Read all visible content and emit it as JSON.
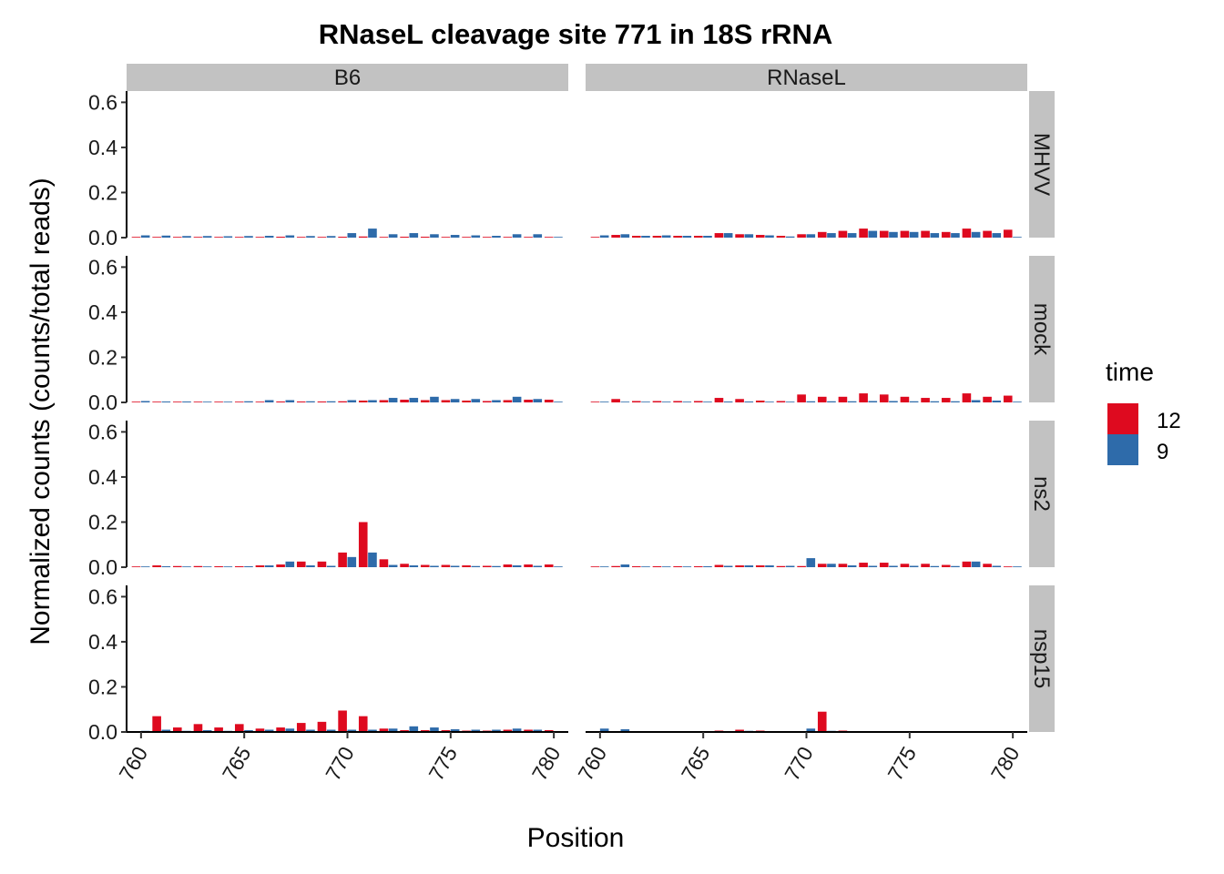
{
  "chart_data": {
    "type": "bar",
    "title": "RNaseL cleavage site 771 in 18S rRNA",
    "xlabel": "Position",
    "ylabel": "Normalized counts (counts/total reads)",
    "ylim": [
      0,
      0.65
    ],
    "xlim": [
      759.3,
      780.7
    ],
    "y_ticks": [
      0.0,
      0.2,
      0.4,
      0.6
    ],
    "y_tick_labels": [
      "0.0",
      "0.2",
      "0.4",
      "0.6"
    ],
    "x_ticks": [
      760,
      765,
      770,
      775,
      780
    ],
    "x_tick_labels": [
      "760",
      "765",
      "770",
      "775",
      "780"
    ],
    "positions": [
      760,
      761,
      762,
      763,
      764,
      765,
      766,
      767,
      768,
      769,
      770,
      771,
      772,
      773,
      774,
      775,
      776,
      777,
      778,
      779,
      780
    ],
    "col_facets": [
      "B6",
      "RNaseL"
    ],
    "row_facets": [
      "MHVV",
      "mock",
      "ns2",
      "nsp15"
    ],
    "legend": {
      "title": "time",
      "position": "right",
      "entries": [
        {
          "label": "12",
          "color": "#DE0A1F"
        },
        {
          "label": "9",
          "color": "#2E6BAA"
        }
      ]
    },
    "panels": [
      {
        "col": "B6",
        "row": "MHVV",
        "series": [
          {
            "name": "12",
            "values": [
              0.002,
              0.003,
              0.002,
              0.002,
              0.002,
              0.002,
              0.003,
              0.004,
              0.003,
              0.003,
              0.004,
              0.005,
              0.003,
              0.004,
              0.004,
              0.003,
              0.003,
              0.003,
              0.003,
              0.003,
              0.003
            ]
          },
          {
            "name": "9",
            "values": [
              0.01,
              0.009,
              0.007,
              0.007,
              0.006,
              0.007,
              0.008,
              0.01,
              0.007,
              0.007,
              0.02,
              0.04,
              0.015,
              0.02,
              0.015,
              0.012,
              0.01,
              0.008,
              0.015,
              0.015,
              0.002
            ]
          }
        ]
      },
      {
        "col": "RNaseL",
        "row": "MHVV",
        "series": [
          {
            "name": "12",
            "values": [
              0.002,
              0.012,
              0.008,
              0.008,
              0.008,
              0.008,
              0.02,
              0.015,
              0.012,
              0.008,
              0.015,
              0.025,
              0.03,
              0.04,
              0.03,
              0.03,
              0.03,
              0.025,
              0.04,
              0.03,
              0.035
            ]
          },
          {
            "name": "9",
            "values": [
              0.01,
              0.015,
              0.008,
              0.01,
              0.008,
              0.008,
              0.02,
              0.015,
              0.01,
              0.005,
              0.015,
              0.02,
              0.02,
              0.03,
              0.025,
              0.025,
              0.02,
              0.02,
              0.025,
              0.02,
              0.002
            ]
          }
        ]
      },
      {
        "col": "B6",
        "row": "mock",
        "series": [
          {
            "name": "12",
            "values": [
              0.002,
              0.003,
              0.002,
              0.002,
              0.002,
              0.002,
              0.003,
              0.004,
              0.004,
              0.004,
              0.005,
              0.008,
              0.01,
              0.012,
              0.01,
              0.01,
              0.008,
              0.006,
              0.01,
              0.012,
              0.012
            ]
          },
          {
            "name": "9",
            "values": [
              0.006,
              0.004,
              0.004,
              0.003,
              0.003,
              0.005,
              0.01,
              0.01,
              0.005,
              0.005,
              0.01,
              0.01,
              0.02,
              0.02,
              0.025,
              0.015,
              0.015,
              0.01,
              0.025,
              0.015,
              0.002
            ]
          }
        ]
      },
      {
        "col": "RNaseL",
        "row": "mock",
        "series": [
          {
            "name": "12",
            "values": [
              0.002,
              0.015,
              0.006,
              0.006,
              0.006,
              0.006,
              0.02,
              0.015,
              0.008,
              0.006,
              0.035,
              0.025,
              0.025,
              0.04,
              0.035,
              0.025,
              0.02,
              0.02,
              0.04,
              0.025,
              0.03
            ]
          },
          {
            "name": "9",
            "values": [
              0.003,
              0.003,
              0.003,
              0.003,
              0.003,
              0.003,
              0.004,
              0.004,
              0.003,
              0.003,
              0.005,
              0.005,
              0.005,
              0.006,
              0.006,
              0.005,
              0.005,
              0.005,
              0.01,
              0.008,
              0.002
            ]
          }
        ]
      },
      {
        "col": "B6",
        "row": "ns2",
        "series": [
          {
            "name": "12",
            "values": [
              0.002,
              0.008,
              0.005,
              0.005,
              0.004,
              0.004,
              0.008,
              0.012,
              0.025,
              0.025,
              0.065,
              0.2,
              0.035,
              0.015,
              0.01,
              0.01,
              0.008,
              0.006,
              0.012,
              0.012,
              0.012
            ]
          },
          {
            "name": "9",
            "values": [
              0.003,
              0.004,
              0.003,
              0.003,
              0.003,
              0.004,
              0.008,
              0.025,
              0.008,
              0.006,
              0.045,
              0.065,
              0.01,
              0.008,
              0.006,
              0.006,
              0.005,
              0.005,
              0.008,
              0.006,
              0.002
            ]
          }
        ]
      },
      {
        "col": "RNaseL",
        "row": "ns2",
        "series": [
          {
            "name": "12",
            "values": [
              0.002,
              0.005,
              0.004,
              0.004,
              0.004,
              0.004,
              0.01,
              0.008,
              0.008,
              0.005,
              0.005,
              0.015,
              0.015,
              0.02,
              0.02,
              0.015,
              0.015,
              0.01,
              0.025,
              0.015,
              0.002
            ]
          },
          {
            "name": "9",
            "values": [
              0.003,
              0.012,
              0.003,
              0.003,
              0.003,
              0.004,
              0.006,
              0.008,
              0.008,
              0.006,
              0.04,
              0.015,
              0.008,
              0.006,
              0.006,
              0.006,
              0.005,
              0.005,
              0.025,
              0.006,
              0.002
            ]
          }
        ]
      },
      {
        "col": "B6",
        "row": "nsp15",
        "series": [
          {
            "name": "12",
            "values": [
              0.002,
              0.07,
              0.02,
              0.035,
              0.02,
              0.035,
              0.015,
              0.02,
              0.04,
              0.045,
              0.095,
              0.07,
              0.015,
              0.008,
              0.008,
              0.008,
              0.006,
              0.006,
              0.01,
              0.01,
              0.008
            ]
          },
          {
            "name": "9",
            "values": [
              0.005,
              0.01,
              0.005,
              0.008,
              0.005,
              0.008,
              0.01,
              0.015,
              0.01,
              0.01,
              0.01,
              0.01,
              0.015,
              0.025,
              0.02,
              0.012,
              0.01,
              0.01,
              0.015,
              0.01,
              0.002
            ]
          }
        ]
      },
      {
        "col": "RNaseL",
        "row": "nsp15",
        "series": [
          {
            "name": "12",
            "values": [
              0.002,
              0.004,
              0.003,
              0.003,
              0.003,
              0.003,
              0.006,
              0.01,
              0.006,
              0.004,
              0.004,
              0.09,
              0.006,
              0.004,
              0.004,
              0.004,
              0.004,
              0.004,
              0.004,
              0.004,
              0.002
            ]
          },
          {
            "name": "9",
            "values": [
              0.015,
              0.012,
              0.003,
              0.003,
              0.003,
              0.003,
              0.004,
              0.005,
              0.004,
              0.004,
              0.015,
              0.005,
              0.004,
              0.004,
              0.004,
              0.004,
              0.004,
              0.004,
              0.004,
              0.004,
              0.002
            ]
          }
        ]
      }
    ]
  }
}
